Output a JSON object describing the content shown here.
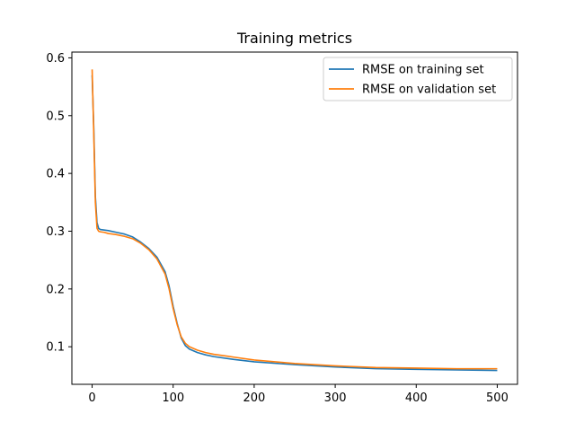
{
  "chart_data": {
    "type": "line",
    "title": "Training metrics",
    "xlabel": "",
    "ylabel": "",
    "xlim": [
      -25,
      525
    ],
    "ylim": [
      0.035,
      0.61
    ],
    "x_ticks": [
      0,
      100,
      200,
      300,
      400,
      500
    ],
    "y_ticks": [
      0.1,
      0.2,
      0.3,
      0.4,
      0.5,
      0.6
    ],
    "grid": false,
    "legend_position": "top-right",
    "x": [
      0,
      2,
      4,
      6,
      8,
      10,
      15,
      20,
      30,
      40,
      50,
      60,
      70,
      80,
      90,
      95,
      100,
      105,
      110,
      115,
      120,
      130,
      140,
      150,
      175,
      200,
      250,
      300,
      350,
      400,
      450,
      500
    ],
    "series": [
      {
        "name": "RMSE on training set",
        "color": "#1f77b4",
        "values": [
          0.57,
          0.48,
          0.36,
          0.315,
          0.305,
          0.303,
          0.302,
          0.301,
          0.298,
          0.295,
          0.29,
          0.281,
          0.27,
          0.255,
          0.23,
          0.205,
          0.17,
          0.14,
          0.115,
          0.102,
          0.096,
          0.09,
          0.086,
          0.083,
          0.078,
          0.074,
          0.069,
          0.065,
          0.062,
          0.061,
          0.06,
          0.059
        ]
      },
      {
        "name": "RMSE on validation set",
        "color": "#ff7f0e",
        "values": [
          0.58,
          0.47,
          0.35,
          0.305,
          0.3,
          0.299,
          0.298,
          0.296,
          0.294,
          0.291,
          0.287,
          0.279,
          0.268,
          0.252,
          0.226,
          0.2,
          0.166,
          0.138,
          0.117,
          0.106,
          0.1,
          0.094,
          0.09,
          0.087,
          0.082,
          0.077,
          0.071,
          0.067,
          0.064,
          0.063,
          0.062,
          0.062
        ]
      }
    ]
  }
}
